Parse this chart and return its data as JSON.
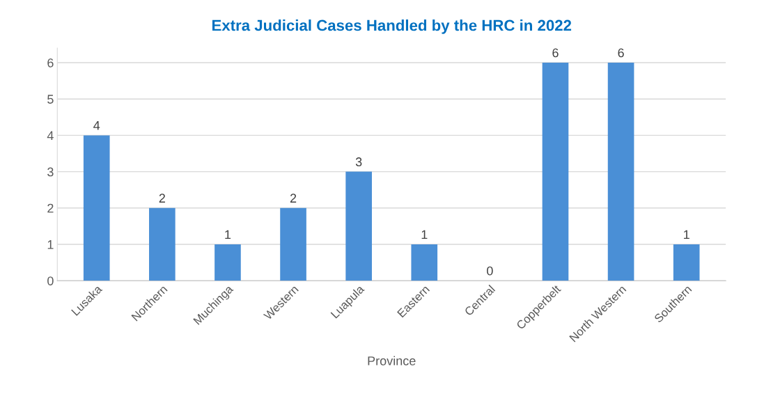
{
  "chart_data": {
    "type": "bar",
    "title": "Extra Judicial Cases Handled by the HRC in 2022",
    "xlabel": "Province",
    "categories": [
      "Lusaka",
      "Northern",
      "Muchinga",
      "Western",
      "Luapula",
      "Eastern",
      "Central",
      "Copperbelt",
      "North Western",
      "Southern"
    ],
    "values": [
      4,
      2,
      1,
      2,
      3,
      1,
      0,
      6,
      6,
      1
    ],
    "color": "#4a8fd6",
    "ylim": [
      0,
      6.4
    ],
    "yticks": [
      0,
      1,
      2,
      3,
      4,
      5,
      6
    ],
    "grid": "y",
    "data_labels": true
  }
}
